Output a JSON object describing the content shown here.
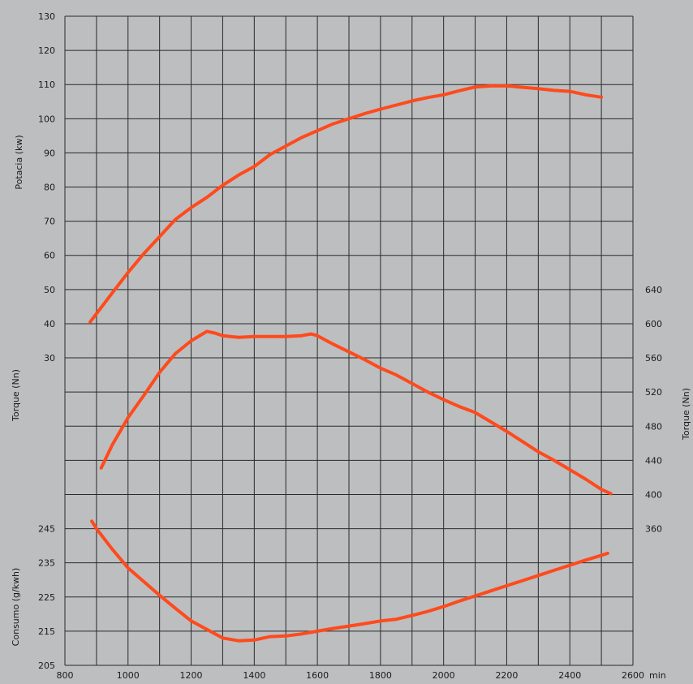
{
  "chart_data": {
    "type": "line",
    "colors": {
      "background": "#bdbec0",
      "grid": "#2a2a2a",
      "line": "#ff4a1c"
    },
    "grid": true,
    "x": {
      "unit": "min",
      "range": [
        800,
        2600
      ],
      "ticks": [
        "800",
        "1000",
        "1200",
        "1400",
        "1600",
        "1800",
        "2000",
        "2200",
        "2400",
        "2600"
      ]
    },
    "axes": {
      "potencia": {
        "label": "Potacia (kw)",
        "side": "left",
        "range": [
          30,
          130
        ],
        "ticks": [
          "130",
          "120",
          "110",
          "100",
          "90",
          "80",
          "70",
          "60",
          "50",
          "40",
          "30"
        ]
      },
      "torque_left": {
        "label": "Torque (Nn)",
        "side": "left"
      },
      "torque_right": {
        "label": "Torque (Nn)",
        "side": "right",
        "range": [
          360,
          640
        ],
        "ticks": [
          "640",
          "600",
          "560",
          "520",
          "480",
          "440",
          "400",
          "360"
        ]
      },
      "consumo": {
        "label": "Consumo (g/kwh)",
        "side": "left",
        "range": [
          205,
          245
        ],
        "ticks": [
          "245",
          "235",
          "225",
          "215",
          "205"
        ]
      }
    },
    "series": [
      {
        "axis": "potencia",
        "points": [
          [
            880,
            40.5
          ],
          [
            950,
            49
          ],
          [
            1000,
            55
          ],
          [
            1050,
            60.5
          ],
          [
            1100,
            65.5
          ],
          [
            1150,
            70.5
          ],
          [
            1200,
            74
          ],
          [
            1250,
            77
          ],
          [
            1300,
            80.5
          ],
          [
            1350,
            83.5
          ],
          [
            1400,
            86
          ],
          [
            1450,
            89.5
          ],
          [
            1500,
            92
          ],
          [
            1550,
            94.5
          ],
          [
            1600,
            96.5
          ],
          [
            1650,
            98.5
          ],
          [
            1700,
            100
          ],
          [
            1750,
            101.5
          ],
          [
            1800,
            102.8
          ],
          [
            1850,
            104
          ],
          [
            1900,
            105.2
          ],
          [
            1950,
            106.2
          ],
          [
            2000,
            107
          ],
          [
            2050,
            108.2
          ],
          [
            2100,
            109.3
          ],
          [
            2150,
            109.6
          ],
          [
            2200,
            109.6
          ],
          [
            2250,
            109.2
          ],
          [
            2300,
            108.8
          ],
          [
            2350,
            108.3
          ],
          [
            2400,
            108
          ],
          [
            2450,
            107
          ],
          [
            2500,
            106.3
          ]
        ]
      },
      {
        "axis": "torque_right",
        "points": [
          [
            915,
            431
          ],
          [
            950,
            458
          ],
          [
            1000,
            490
          ],
          [
            1050,
            516
          ],
          [
            1100,
            543
          ],
          [
            1150,
            565
          ],
          [
            1200,
            580
          ],
          [
            1250,
            591
          ],
          [
            1275,
            589
          ],
          [
            1300,
            586
          ],
          [
            1350,
            584
          ],
          [
            1400,
            585
          ],
          [
            1450,
            585
          ],
          [
            1500,
            585
          ],
          [
            1550,
            586
          ],
          [
            1580,
            588
          ],
          [
            1600,
            586
          ],
          [
            1650,
            576
          ],
          [
            1700,
            567
          ],
          [
            1750,
            558
          ],
          [
            1800,
            548
          ],
          [
            1850,
            540
          ],
          [
            1900,
            530
          ],
          [
            1950,
            520
          ],
          [
            2000,
            511
          ],
          [
            2050,
            503
          ],
          [
            2100,
            496
          ],
          [
            2150,
            485
          ],
          [
            2200,
            474
          ],
          [
            2250,
            462
          ],
          [
            2300,
            450
          ],
          [
            2350,
            440
          ],
          [
            2400,
            429
          ],
          [
            2450,
            418
          ],
          [
            2500,
            406
          ],
          [
            2530,
            401
          ]
        ]
      },
      {
        "axis": "consumo",
        "points": [
          [
            885,
            247.2
          ],
          [
            900,
            245
          ],
          [
            950,
            239
          ],
          [
            1000,
            233.5
          ],
          [
            1050,
            229.5
          ],
          [
            1100,
            225.5
          ],
          [
            1150,
            221.7
          ],
          [
            1200,
            218
          ],
          [
            1250,
            215.5
          ],
          [
            1300,
            213
          ],
          [
            1350,
            212.2
          ],
          [
            1400,
            212.4
          ],
          [
            1450,
            213.4
          ],
          [
            1500,
            213.6
          ],
          [
            1550,
            214.2
          ],
          [
            1600,
            215
          ],
          [
            1650,
            215.8
          ],
          [
            1700,
            216.5
          ],
          [
            1750,
            217.2
          ],
          [
            1800,
            218
          ],
          [
            1850,
            218.5
          ],
          [
            1900,
            219.6
          ],
          [
            1950,
            220.8
          ],
          [
            2000,
            222.2
          ],
          [
            2050,
            223.8
          ],
          [
            2100,
            225.3
          ],
          [
            2150,
            226.8
          ],
          [
            2200,
            228.3
          ],
          [
            2250,
            229.8
          ],
          [
            2300,
            231.3
          ],
          [
            2350,
            232.8
          ],
          [
            2400,
            234.3
          ],
          [
            2450,
            235.8
          ],
          [
            2500,
            237.2
          ],
          [
            2520,
            237.8
          ]
        ]
      }
    ]
  }
}
